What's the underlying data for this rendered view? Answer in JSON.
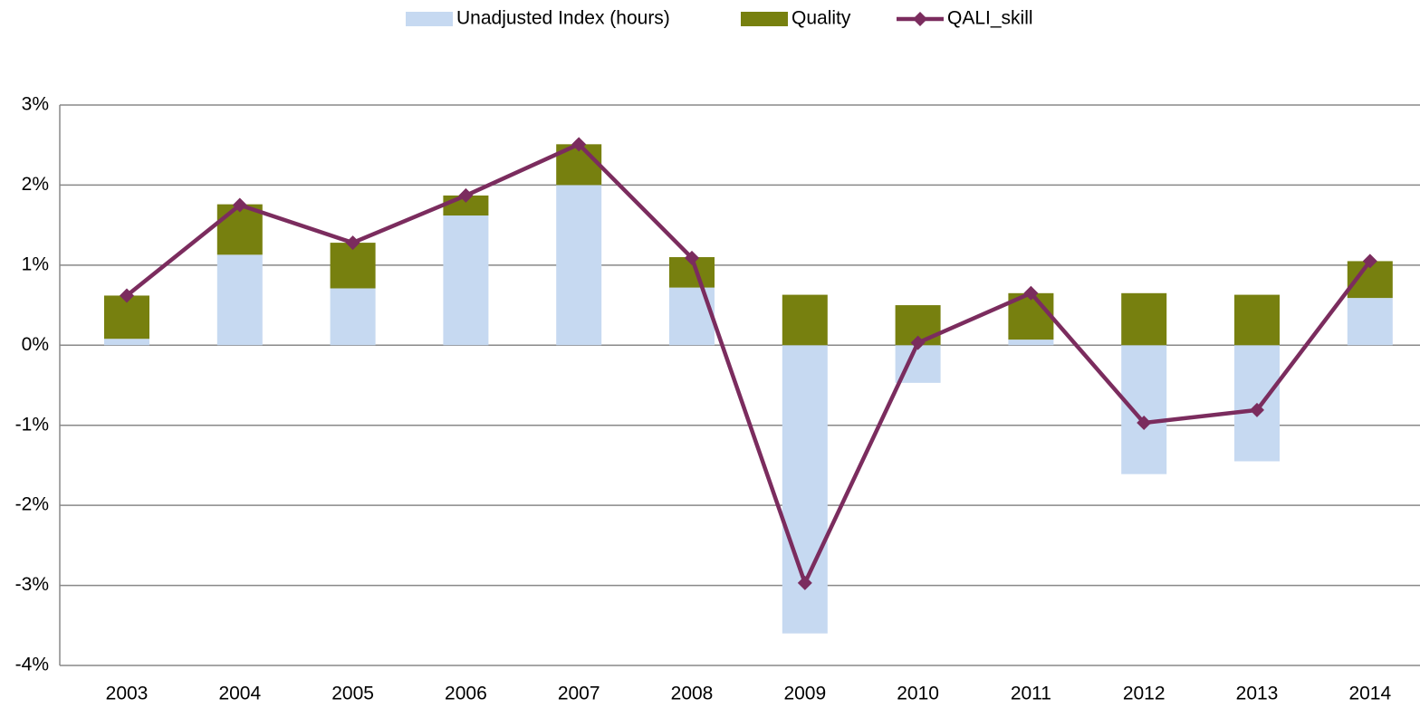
{
  "chart_data": {
    "type": "bar_line",
    "categories": [
      "2003",
      "2004",
      "2005",
      "2006",
      "2007",
      "2008",
      "2009",
      "2010",
      "2011",
      "2012",
      "2013",
      "2014"
    ],
    "series": [
      {
        "name": "Unadjusted Index (hours)",
        "type": "bar",
        "color": "#c6d9f1",
        "values": [
          0.08,
          1.13,
          0.71,
          1.62,
          2.0,
          0.72,
          -3.6,
          -0.47,
          0.07,
          -1.61,
          -1.45,
          0.59
        ]
      },
      {
        "name": "Quality",
        "type": "bar",
        "color": "#77800f",
        "values": [
          0.54,
          0.63,
          0.57,
          0.25,
          0.51,
          0.38,
          0.63,
          0.5,
          0.58,
          0.65,
          0.63,
          0.46
        ]
      },
      {
        "name": "QALI_skill",
        "type": "line",
        "color": "#7b2c5e",
        "values": [
          0.62,
          1.75,
          1.28,
          1.87,
          2.51,
          1.09,
          -2.97,
          0.03,
          0.65,
          -0.97,
          -0.81,
          1.05
        ]
      }
    ],
    "stacked": true,
    "ylim": [
      -4,
      3
    ],
    "yticks": [
      {
        "value": -4,
        "label": "-4%"
      },
      {
        "value": -3,
        "label": "-3%"
      },
      {
        "value": -2,
        "label": "-2%"
      },
      {
        "value": -1,
        "label": "-1%"
      },
      {
        "value": 0,
        "label": "0%"
      },
      {
        "value": 1,
        "label": "1%"
      },
      {
        "value": 2,
        "label": "2%"
      },
      {
        "value": 3,
        "label": "3%"
      }
    ],
    "grid": true,
    "legend": "top"
  }
}
